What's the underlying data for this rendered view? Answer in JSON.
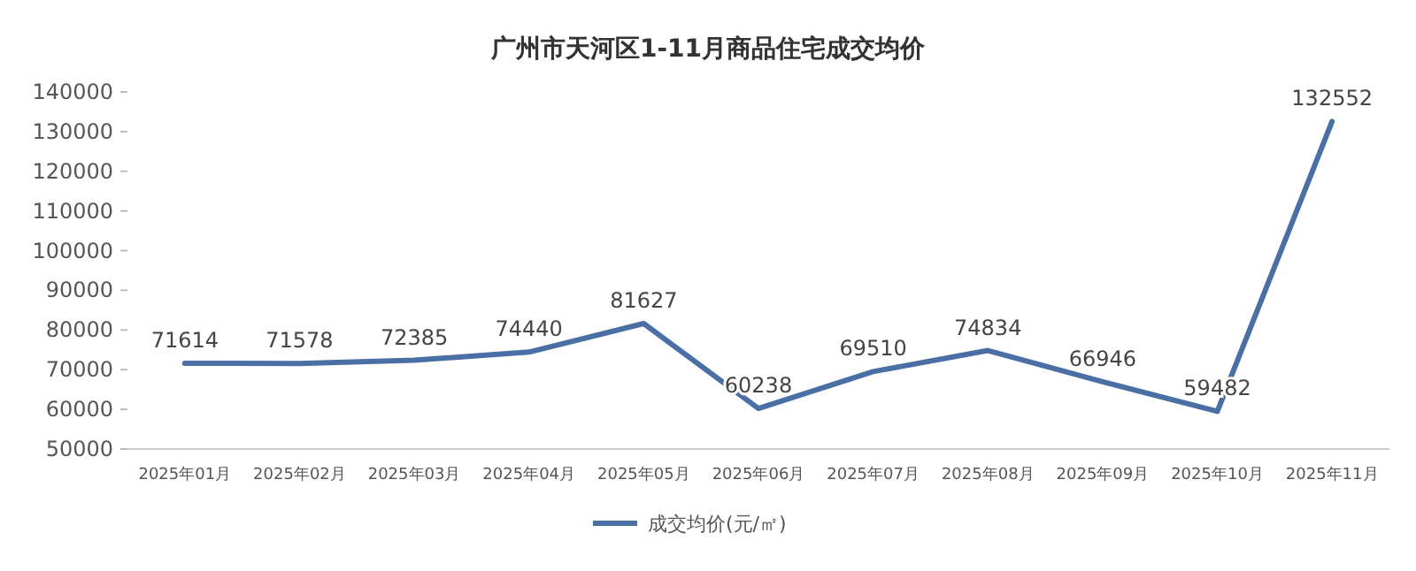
{
  "chart_data": {
    "type": "line",
    "title": "广州市天河区1-11月商品住宅成交均价",
    "categories": [
      "2025年01月",
      "2025年02月",
      "2025年03月",
      "2025年04月",
      "2025年05月",
      "2025年06月",
      "2025年07月",
      "2025年08月",
      "2025年09月",
      "2025年10月",
      "2025年11月"
    ],
    "series": [
      {
        "name": "成交均价(元/㎡)",
        "color": "#4a6fa5",
        "values": [
          71614,
          71578,
          72385,
          74440,
          81627,
          60238,
          69510,
          74834,
          66946,
          59482,
          132552
        ]
      }
    ],
    "ylim": [
      50000,
      140000
    ],
    "yticks": [
      50000,
      60000,
      70000,
      80000,
      90000,
      100000,
      110000,
      120000,
      130000,
      140000
    ],
    "data_labels": true,
    "legend": "bottom",
    "grid": false,
    "marker": "none",
    "line_style": "solid"
  }
}
